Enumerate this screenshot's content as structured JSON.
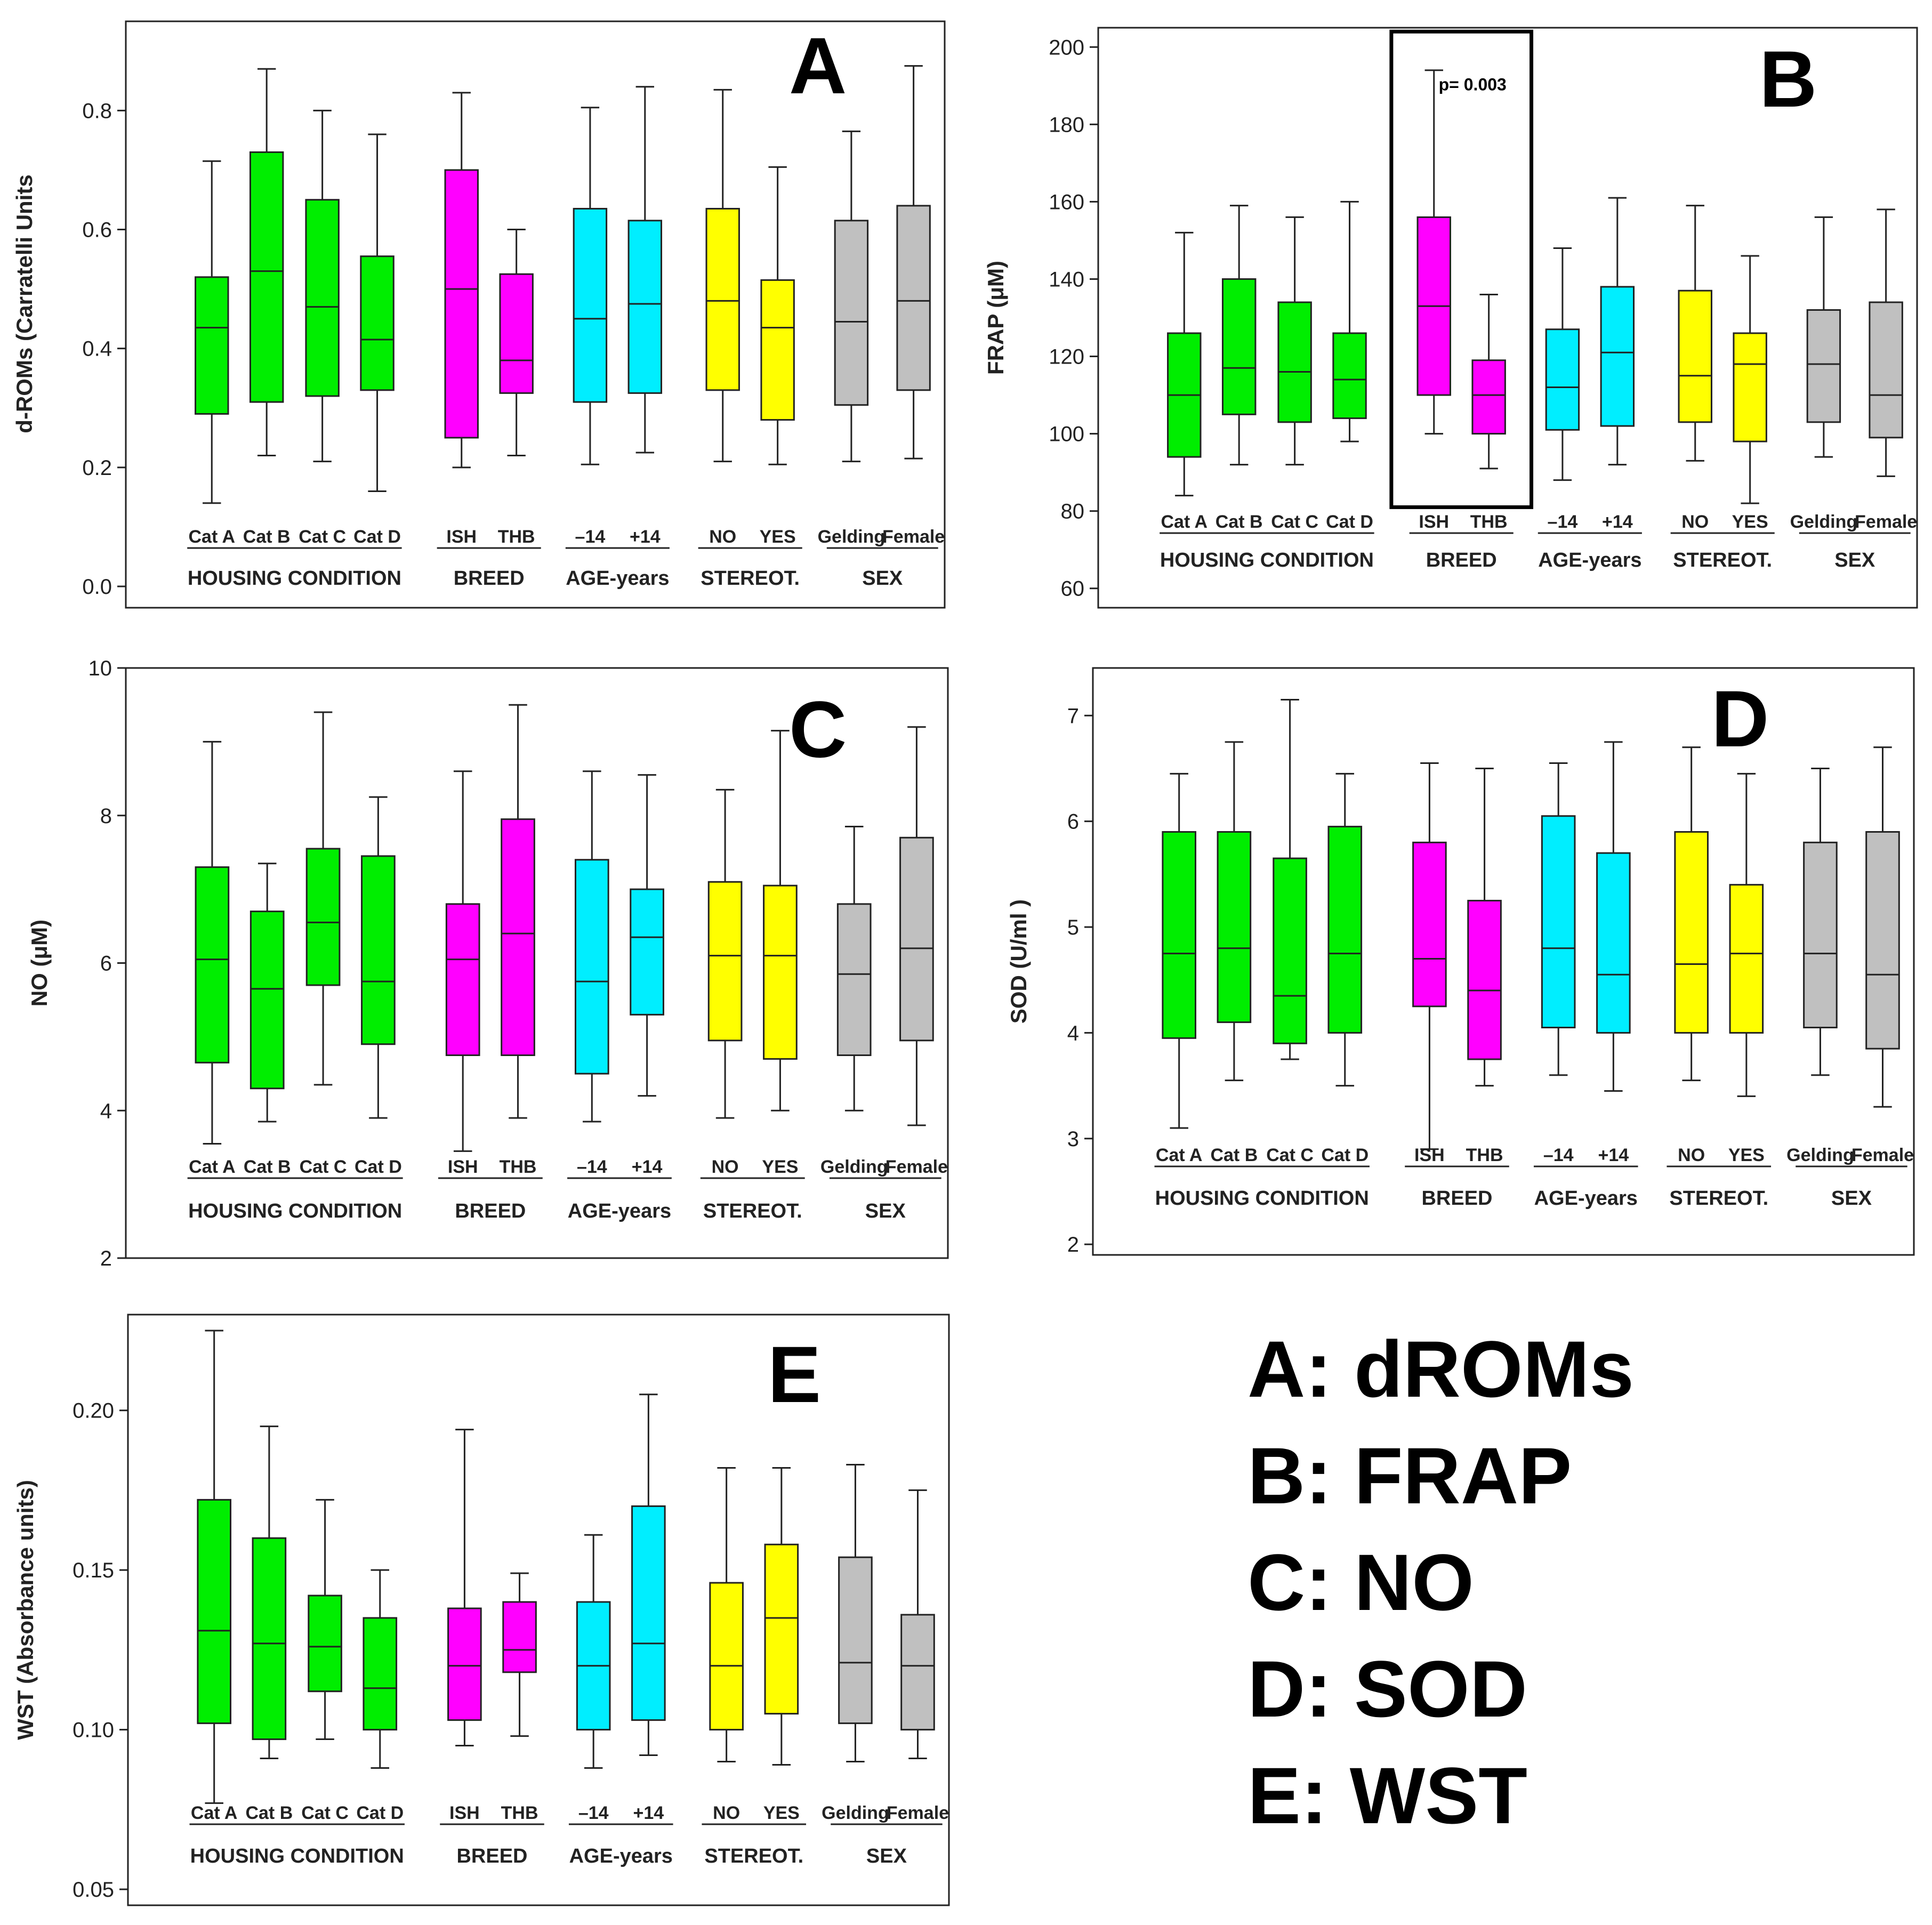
{
  "colors": {
    "housing": "#00ee00",
    "breed": "#ff00ff",
    "age": "#00eeff",
    "stereot": "#ffff00",
    "sex": "#c0c0c0",
    "stroke": "#222222"
  },
  "legend": [
    "A: dROMs",
    "B: FRAP",
    "C: NO",
    "D: SOD",
    "E: WST"
  ],
  "chart_data": [
    {
      "type": "box",
      "letter": "A",
      "ylabel": "d-ROMs  (Carratelli Units",
      "ylim": [
        0.0,
        0.95
      ],
      "ticks": [
        0.0,
        0.2,
        0.4,
        0.6,
        0.8
      ],
      "tick_labels": [
        "0.0",
        "0.2",
        "0.4",
        "0.6",
        "0.8"
      ],
      "categories": [
        "Cat A",
        "Cat B",
        "Cat C",
        "Cat D",
        "ISH",
        "THB",
        "–14",
        "+14",
        "NO",
        "YES",
        "Gelding",
        "Female"
      ],
      "groups": [
        {
          "label": "HOUSING CONDITION",
          "count": 4,
          "color_key": "housing"
        },
        {
          "label": "BREED",
          "count": 2,
          "color_key": "breed"
        },
        {
          "label": "AGE-years",
          "count": 2,
          "color_key": "age"
        },
        {
          "label": "STEREOT.",
          "count": 2,
          "color_key": "stereot"
        },
        {
          "label": "SEX",
          "count": 2,
          "color_key": "sex"
        }
      ],
      "boxes": [
        [
          0.14,
          0.29,
          0.435,
          0.52,
          0.715
        ],
        [
          0.22,
          0.31,
          0.53,
          0.73,
          0.87
        ],
        [
          0.21,
          0.32,
          0.47,
          0.65,
          0.8
        ],
        [
          0.16,
          0.33,
          0.415,
          0.555,
          0.76
        ],
        [
          0.2,
          0.25,
          0.5,
          0.7,
          0.83
        ],
        [
          0.22,
          0.325,
          0.38,
          0.525,
          0.6
        ],
        [
          0.205,
          0.31,
          0.45,
          0.635,
          0.805
        ],
        [
          0.225,
          0.325,
          0.475,
          0.615,
          0.84
        ],
        [
          0.21,
          0.33,
          0.48,
          0.635,
          0.835
        ],
        [
          0.205,
          0.28,
          0.435,
          0.515,
          0.705
        ],
        [
          0.21,
          0.305,
          0.445,
          0.615,
          0.765
        ],
        [
          0.215,
          0.33,
          0.48,
          0.64,
          0.875
        ]
      ],
      "annotations": []
    },
    {
      "type": "box",
      "letter": "B",
      "ylabel": "FRAP (μM)",
      "ylim": [
        55,
        205
      ],
      "ticks": [
        60,
        80,
        100,
        120,
        140,
        160,
        180,
        200
      ],
      "tick_labels": [
        "60",
        "80",
        "100",
        "120",
        "140",
        "160",
        "180",
        "200"
      ],
      "categories": [
        "Cat A",
        "Cat B",
        "Cat C",
        "Cat D",
        "ISH",
        "THB",
        "–14",
        "+14",
        "NO",
        "YES",
        "Gelding",
        "Female"
      ],
      "groups": [
        {
          "label": "HOUSING CONDITION",
          "count": 4,
          "color_key": "housing"
        },
        {
          "label": "BREED",
          "count": 2,
          "color_key": "breed"
        },
        {
          "label": "AGE-years",
          "count": 2,
          "color_key": "age"
        },
        {
          "label": "STEREOT.",
          "count": 2,
          "color_key": "stereot"
        },
        {
          "label": "SEX",
          "count": 2,
          "color_key": "sex"
        }
      ],
      "boxes": [
        [
          84,
          94,
          110,
          126,
          152
        ],
        [
          92,
          105,
          117,
          140,
          159
        ],
        [
          92,
          103,
          116,
          134,
          156
        ],
        [
          98,
          104,
          114,
          126,
          160
        ],
        [
          100,
          110,
          133,
          156,
          194
        ],
        [
          91,
          100,
          110,
          119,
          136
        ],
        [
          88,
          101,
          112,
          127,
          148
        ],
        [
          92,
          102,
          121,
          138,
          161
        ],
        [
          93,
          103,
          115,
          137,
          159
        ],
        [
          82,
          98,
          118,
          126,
          146
        ],
        [
          94,
          103,
          118,
          132,
          156
        ],
        [
          89,
          99,
          110,
          134,
          158
        ]
      ],
      "annotations": [
        {
          "text": "p= 0.003",
          "type": "highlight",
          "categories": [
            4,
            5
          ],
          "y_bottom": 81,
          "y_top": 204
        }
      ]
    },
    {
      "type": "box",
      "letter": "C",
      "ylabel": "NO (μM)",
      "ylim": [
        2,
        10
      ],
      "ticks": [
        2,
        4,
        6,
        8,
        10
      ],
      "tick_labels": [
        "2",
        "4",
        "6",
        "8",
        "10"
      ],
      "categories": [
        "Cat A",
        "Cat B",
        "Cat C",
        "Cat D",
        "ISH",
        "THB",
        "–14",
        "+14",
        "NO",
        "YES",
        "Gelding",
        "Female"
      ],
      "groups": [
        {
          "label": "HOUSING CONDITION",
          "count": 4,
          "color_key": "housing"
        },
        {
          "label": "BREED",
          "count": 2,
          "color_key": "breed"
        },
        {
          "label": "AGE-years",
          "count": 2,
          "color_key": "age"
        },
        {
          "label": "STEREOT.",
          "count": 2,
          "color_key": "stereot"
        },
        {
          "label": "SEX",
          "count": 2,
          "color_key": "sex"
        }
      ],
      "boxes": [
        [
          3.55,
          4.65,
          6.05,
          7.3,
          9.0
        ],
        [
          3.85,
          4.3,
          5.65,
          6.7,
          7.35
        ],
        [
          4.35,
          5.7,
          6.55,
          7.55,
          9.4
        ],
        [
          3.9,
          4.9,
          5.75,
          7.45,
          8.25
        ],
        [
          3.45,
          4.75,
          6.05,
          6.8,
          8.6
        ],
        [
          3.9,
          4.75,
          6.4,
          7.95,
          9.5
        ],
        [
          3.85,
          4.5,
          5.75,
          7.4,
          8.6
        ],
        [
          4.2,
          5.3,
          6.35,
          7.0,
          8.55
        ],
        [
          3.9,
          4.95,
          6.1,
          7.1,
          8.35
        ],
        [
          4.0,
          4.7,
          6.1,
          7.05,
          9.15
        ],
        [
          4.0,
          4.75,
          5.85,
          6.8,
          7.85
        ],
        [
          3.8,
          4.95,
          6.2,
          7.7,
          9.2
        ]
      ],
      "annotations": []
    },
    {
      "type": "box",
      "letter": "D",
      "ylabel": "SOD (U/ml )",
      "ylim": [
        1.9,
        7.45
      ],
      "ticks": [
        2,
        3,
        4,
        5,
        6,
        7
      ],
      "tick_labels": [
        "2",
        "3",
        "4",
        "5",
        "6",
        "7"
      ],
      "categories": [
        "Cat A",
        "Cat B",
        "Cat C",
        "Cat D",
        "ISH",
        "THB",
        "–14",
        "+14",
        "NO",
        "YES",
        "Gelding",
        "Female"
      ],
      "groups": [
        {
          "label": "HOUSING CONDITION",
          "count": 4,
          "color_key": "housing"
        },
        {
          "label": "BREED",
          "count": 2,
          "color_key": "breed"
        },
        {
          "label": "AGE-years",
          "count": 2,
          "color_key": "age"
        },
        {
          "label": "STEREOT.",
          "count": 2,
          "color_key": "stereot"
        },
        {
          "label": "SEX",
          "count": 2,
          "color_key": "sex"
        }
      ],
      "boxes": [
        [
          3.1,
          3.95,
          4.75,
          5.9,
          6.45
        ],
        [
          3.55,
          4.1,
          4.8,
          5.9,
          6.75
        ],
        [
          3.75,
          3.9,
          4.35,
          5.65,
          7.15
        ],
        [
          3.5,
          4.0,
          4.75,
          5.95,
          6.45
        ],
        [
          2.9,
          4.25,
          4.7,
          5.8,
          6.55
        ],
        [
          3.5,
          3.75,
          4.4,
          5.25,
          6.5
        ],
        [
          3.6,
          4.05,
          4.8,
          6.05,
          6.55
        ],
        [
          3.45,
          4.0,
          4.55,
          5.7,
          6.75
        ],
        [
          3.55,
          4.0,
          4.65,
          5.9,
          6.7
        ],
        [
          3.4,
          4.0,
          4.75,
          5.4,
          6.45
        ],
        [
          3.6,
          4.05,
          4.75,
          5.8,
          6.5
        ],
        [
          3.3,
          3.85,
          4.55,
          5.9,
          6.7
        ]
      ],
      "annotations": []
    },
    {
      "type": "box",
      "letter": "E",
      "ylabel": "WST (Absorbance units)",
      "ylim": [
        0.045,
        0.23
      ],
      "ticks": [
        0.05,
        0.1,
        0.15,
        0.2
      ],
      "tick_labels": [
        "0.05",
        "0.10",
        "0.15",
        "0.20"
      ],
      "categories": [
        "Cat A",
        "Cat B",
        "Cat C",
        "Cat D",
        "ISH",
        "THB",
        "–14",
        "+14",
        "NO",
        "YES",
        "Gelding",
        "Female"
      ],
      "groups": [
        {
          "label": "HOUSING CONDITION",
          "count": 4,
          "color_key": "housing"
        },
        {
          "label": "BREED",
          "count": 2,
          "color_key": "breed"
        },
        {
          "label": "AGE-years",
          "count": 2,
          "color_key": "age"
        },
        {
          "label": "STEREOT.",
          "count": 2,
          "color_key": "stereot"
        },
        {
          "label": "SEX",
          "count": 2,
          "color_key": "sex"
        }
      ],
      "boxes": [
        [
          0.077,
          0.102,
          0.131,
          0.172,
          0.225
        ],
        [
          0.091,
          0.097,
          0.127,
          0.16,
          0.195
        ],
        [
          0.097,
          0.112,
          0.126,
          0.142,
          0.172
        ],
        [
          0.088,
          0.1,
          0.113,
          0.135,
          0.15
        ],
        [
          0.095,
          0.103,
          0.12,
          0.138,
          0.194
        ],
        [
          0.098,
          0.118,
          0.125,
          0.14,
          0.149
        ],
        [
          0.088,
          0.1,
          0.12,
          0.14,
          0.161
        ],
        [
          0.092,
          0.103,
          0.127,
          0.17,
          0.205
        ],
        [
          0.09,
          0.1,
          0.12,
          0.146,
          0.182
        ],
        [
          0.089,
          0.105,
          0.135,
          0.158,
          0.182
        ],
        [
          0.09,
          0.102,
          0.121,
          0.154,
          0.183
        ],
        [
          0.091,
          0.1,
          0.12,
          0.136,
          0.175
        ]
      ],
      "annotations": []
    }
  ]
}
